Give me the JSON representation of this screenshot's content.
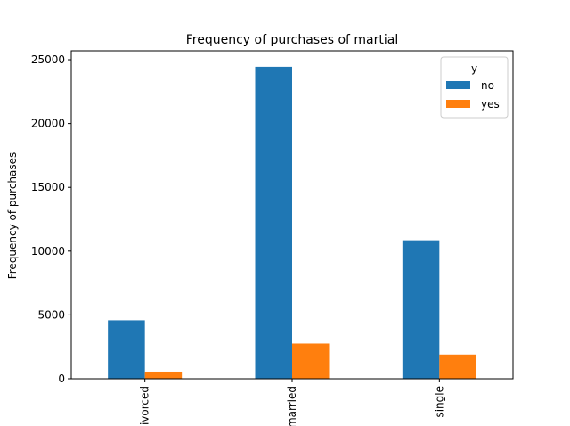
{
  "chart_data": {
    "type": "bar",
    "title": "Frequency of purchases of martial",
    "xlabel": "",
    "ylabel": "Frequency of purchases",
    "categories": [
      "divorced",
      "married",
      "single"
    ],
    "series": [
      {
        "name": "no",
        "values": [
          4580,
          24450,
          10850
        ],
        "color": "#1f77b4"
      },
      {
        "name": "yes",
        "values": [
          560,
          2760,
          1900
        ],
        "color": "#ff7f0e"
      }
    ],
    "ylim": [
      0,
      25700
    ],
    "yticks": [
      0,
      5000,
      10000,
      15000,
      20000,
      25000
    ],
    "legend": {
      "title": "y",
      "position": "top-right"
    },
    "grid": false
  }
}
